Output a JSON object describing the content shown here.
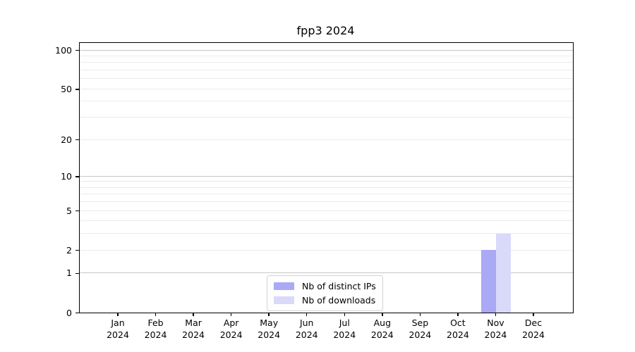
{
  "title": "fpp3 2024",
  "chart_data": {
    "type": "bar",
    "title": "fpp3 2024",
    "categories": [
      "Jan 2024",
      "Feb 2024",
      "Mar 2024",
      "Apr 2024",
      "May 2024",
      "Jun 2024",
      "Jul 2024",
      "Aug 2024",
      "Sep 2024",
      "Oct 2024",
      "Nov 2024",
      "Dec 2024"
    ],
    "series": [
      {
        "name": "Nb of distinct IPs",
        "color": "#a9a9f5",
        "values": [
          0,
          0,
          0,
          0,
          0,
          0,
          0,
          0,
          0,
          0,
          2,
          0
        ]
      },
      {
        "name": "Nb of downloads",
        "color": "#d9d9fa",
        "values": [
          0,
          0,
          0,
          0,
          0,
          0,
          0,
          0,
          0,
          0,
          3,
          0
        ]
      }
    ],
    "yscale": "log1p",
    "ylim": [
      0,
      113.5
    ],
    "ytick_labels": [
      0,
      1,
      2,
      5,
      10,
      20,
      50,
      100
    ],
    "ygrid_major": [
      1,
      10,
      100
    ],
    "ygrid_minor": [
      2,
      3,
      4,
      5,
      6,
      7,
      8,
      9,
      20,
      30,
      40,
      50,
      60,
      70,
      80,
      90
    ],
    "grid": true,
    "legend_position": "lower center",
    "xlabel": "",
    "ylabel": ""
  },
  "colors": {
    "grid_major": "#c6c6c6",
    "grid_minor": "#ebebeb",
    "spine": "#000000",
    "legend_border": "#d2d2d2",
    "bar_distinct_ips": "#a9a9f5",
    "bar_downloads": "#d9d9fa"
  }
}
